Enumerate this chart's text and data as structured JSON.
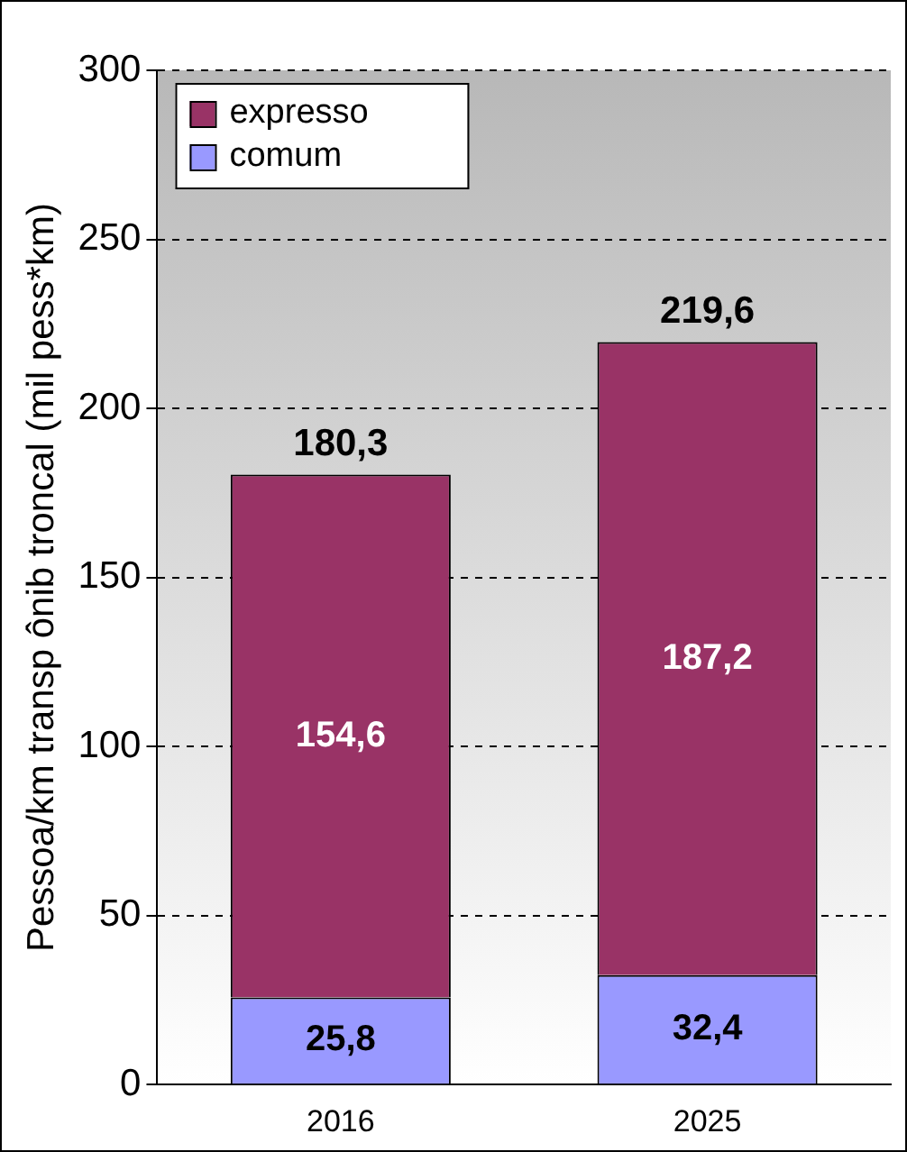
{
  "chart_data": {
    "type": "bar",
    "stacked": true,
    "categories": [
      "2016",
      "2025"
    ],
    "ylabel": "Pessoa/km transp ônib troncal (mil pess*km)",
    "series": [
      {
        "name": "comum",
        "color": "#9999ff",
        "values": [
          25.8,
          32.4
        ],
        "value_labels": [
          "25,8",
          "32,4"
        ]
      },
      {
        "name": "expresso",
        "color": "#993366",
        "values": [
          154.6,
          187.2
        ],
        "value_labels": [
          "154,6",
          "187,2"
        ]
      }
    ],
    "totals": [
      "180,3",
      "219,6"
    ],
    "ylim": [
      0,
      300
    ],
    "yticks": [
      0,
      50,
      100,
      150,
      200,
      250,
      300
    ],
    "grid": "y",
    "legend": "top left"
  }
}
